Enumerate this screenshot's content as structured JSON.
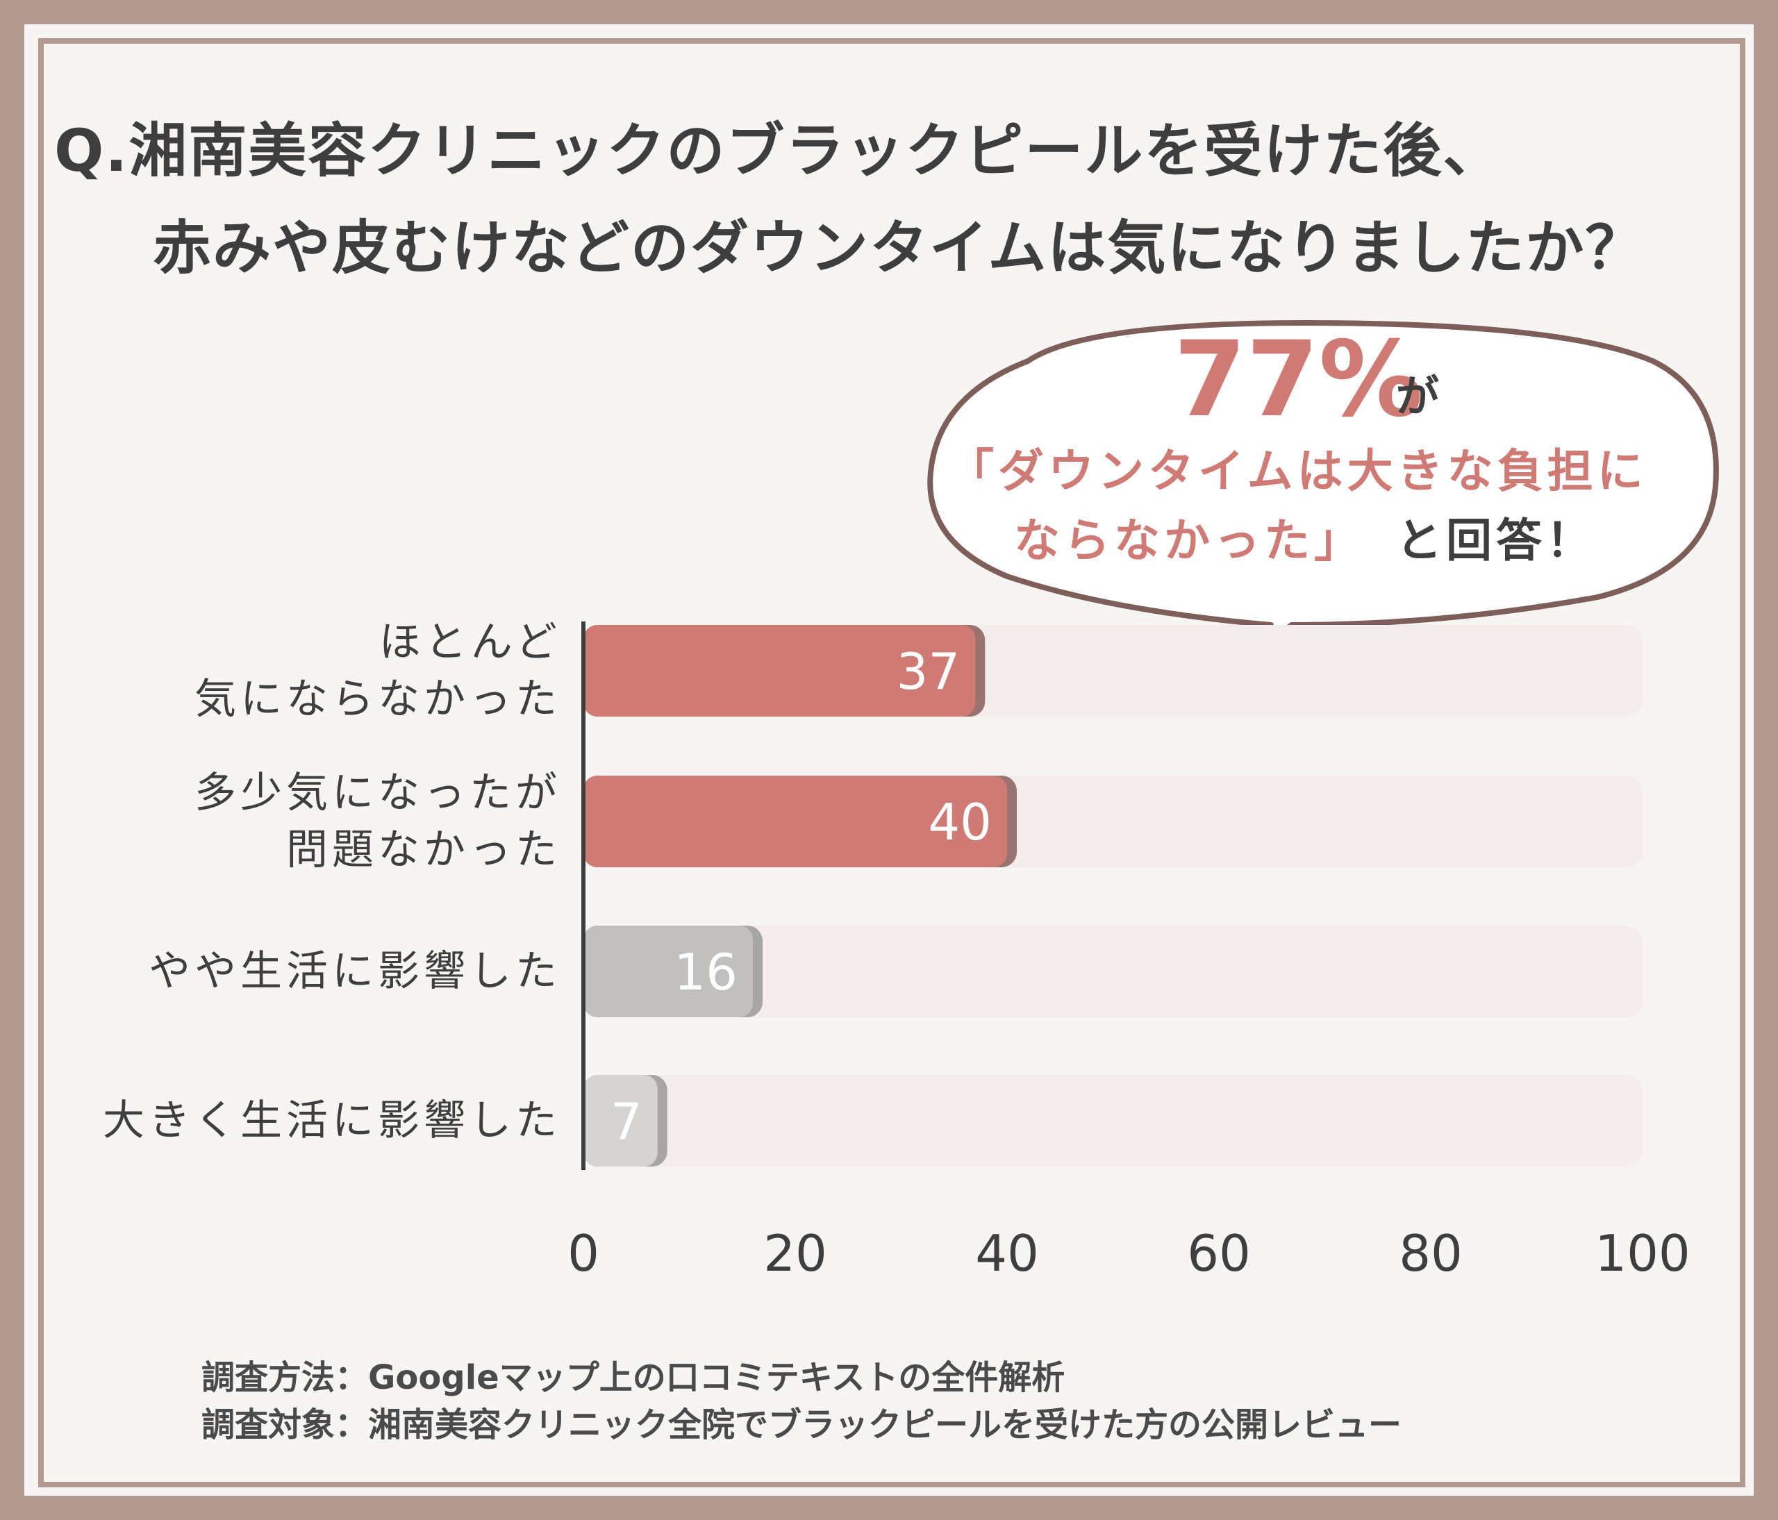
{
  "title": {
    "line1": "Q.湘南美容クリニックのブラックピールを受けた後、",
    "line2": "赤みや皮むけなどのダウンタイムは気になりましたか？"
  },
  "callout": {
    "percent": "77%",
    "ga": "が",
    "quote_line1": "「ダウンタイムは大きな負担に",
    "quote_line2": "ならなかった」",
    "tail": "と回答！"
  },
  "chart_data": {
    "type": "bar",
    "orientation": "horizontal",
    "categories": [
      [
        "ほとんど",
        "気にならなかった"
      ],
      [
        "多少気になったが",
        "問題なかった"
      ],
      [
        "やや生活に影響した"
      ],
      [
        "大きく生活に影響した"
      ]
    ],
    "values": [
      37,
      40,
      16,
      7
    ],
    "data_labels": [
      "37",
      "40",
      "16",
      "7"
    ],
    "xlim": [
      0,
      100
    ],
    "xticks": [
      "0",
      "20",
      "40",
      "60",
      "80",
      "100"
    ],
    "bar_colors": [
      "#d07a76",
      "#d07a76",
      "#c2c0bf",
      "#d6d4d3"
    ],
    "track_color": "#f5eded",
    "grid": false
  },
  "notes": {
    "method": "調査方法：Googleマップ上の口コミテキストの全件解析",
    "target": "調査対象：湘南美容クリニック全院でブラックピールを受けた方の公開レビュー"
  },
  "colors": {
    "accent": "#d07a76",
    "frame": "#b39a90",
    "text": "#3e3e3e"
  }
}
